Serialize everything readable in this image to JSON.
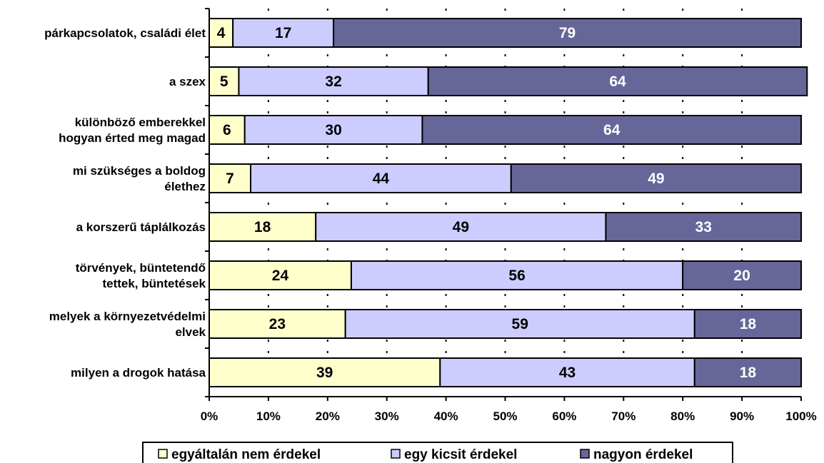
{
  "chart_data": {
    "type": "bar",
    "orientation": "horizontal",
    "stacked": true,
    "categories": [
      [
        "párkapcsolatok, családi élet"
      ],
      [
        "a szex"
      ],
      [
        "különböző emberekkel",
        "hogyan érted meg magad"
      ],
      [
        "mi szükséges a boldog",
        "élethez"
      ],
      [
        "a korszerű táplálkozás"
      ],
      [
        "törvények, büntetendő",
        "tettek, büntetések"
      ],
      [
        "melyek a környezetvédelmi",
        "elvek"
      ],
      [
        "milyen a drogok hatása"
      ]
    ],
    "series": [
      {
        "name": "egyáltalán nem érdekel",
        "color": "#ffffcc",
        "label_color": "#000000",
        "values": [
          4,
          5,
          6,
          7,
          18,
          24,
          23,
          39
        ]
      },
      {
        "name": "egy kicsit érdekel",
        "color": "#ccccff",
        "label_color": "#000000",
        "values": [
          17,
          32,
          30,
          44,
          49,
          56,
          59,
          43
        ]
      },
      {
        "name": "nagyon érdekel",
        "color": "#666699",
        "label_color": "#ffffff",
        "values": [
          79,
          64,
          64,
          49,
          33,
          20,
          18,
          18
        ]
      }
    ],
    "x_ticks": [
      "0%",
      "10%",
      "20%",
      "30%",
      "40%",
      "50%",
      "60%",
      "70%",
      "80%",
      "90%",
      "100%"
    ],
    "xlim": [
      0,
      100
    ],
    "grid": "vertical dashed",
    "legend_position": "bottom"
  }
}
